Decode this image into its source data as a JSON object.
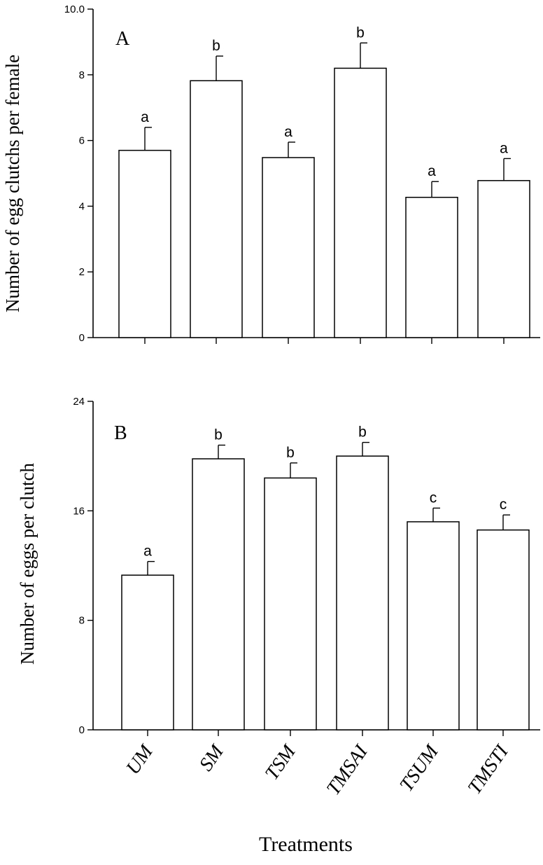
{
  "chart_data": [
    {
      "type": "bar",
      "panel_label": "A",
      "categories": [
        "UM",
        "SM",
        "TSM",
        "TMSAI",
        "TSUM",
        "TMSTI"
      ],
      "values": [
        5.7,
        7.82,
        5.48,
        8.2,
        4.27,
        4.78
      ],
      "errors": [
        0.7,
        0.75,
        0.47,
        0.77,
        0.48,
        0.67
      ],
      "letters": [
        "a",
        "b",
        "a",
        "b",
        "a",
        "a"
      ],
      "ylabel": "Number of egg clutchs per female",
      "xlabel": "",
      "ylim": [
        0,
        10
      ],
      "yticks": [
        "0",
        "2",
        "4",
        "6",
        "8",
        "10.0"
      ],
      "ytick_values": [
        0,
        2,
        4,
        6,
        8,
        10
      ]
    },
    {
      "type": "bar",
      "panel_label": "B",
      "categories": [
        "UM",
        "SM",
        "TSM",
        "TMSAI",
        "TSUM",
        "TMSTI"
      ],
      "values": [
        11.3,
        19.8,
        18.4,
        20.0,
        15.2,
        14.6
      ],
      "errors": [
        1.0,
        1.0,
        1.1,
        1.0,
        1.0,
        1.1
      ],
      "letters": [
        "a",
        "b",
        "b",
        "b",
        "c",
        "c"
      ],
      "ylabel": "Number of eggs per clutch",
      "xlabel": "Treatments",
      "ylim": [
        0,
        24
      ],
      "yticks": [
        "0",
        "8",
        "16",
        "24"
      ],
      "ytick_values": [
        0,
        8,
        16,
        24
      ]
    }
  ]
}
